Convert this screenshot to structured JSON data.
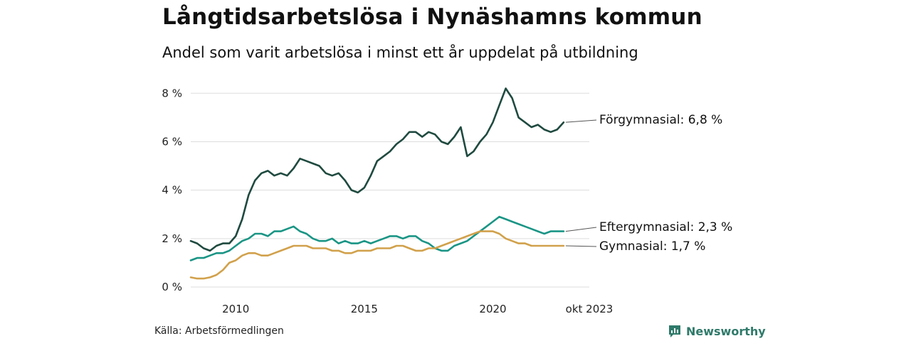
{
  "title": "Långtidsarbetslösa i Nynäshamns kommun",
  "subtitle": "Andel som varit arbetslösa i minst ett år uppdelat på utbildning",
  "source": "Källa: Arbetsförmedlingen",
  "brand": {
    "name": "Newsworthy",
    "icon": "newsworthy-logo-icon",
    "color": "#2f7a6a"
  },
  "chart_data": {
    "type": "line",
    "title": "Långtidsarbetslösa i Nynäshamns kommun",
    "subtitle": "Andel som varit arbetslösa i minst ett år uppdelat på utbildning",
    "xlabel": "",
    "ylabel": "",
    "xlim": [
      2008.25,
      2023.75
    ],
    "ylim": [
      0,
      8.8
    ],
    "y_ticks": [
      0,
      2,
      4,
      6,
      8
    ],
    "y_tick_labels": [
      "0 %",
      "2 %",
      "4 %",
      "6 %",
      "8 %"
    ],
    "x_ticks": [
      2010,
      2015,
      2020,
      2023.75
    ],
    "x_tick_labels": [
      "2010",
      "2015",
      "2020",
      "okt 2023"
    ],
    "grid": true,
    "series": [
      {
        "name": "Förgymnasial",
        "end_label": "Förgymnasial: 6,8 %",
        "color": "#1f4a3f",
        "points": [
          [
            2008.25,
            1.9
          ],
          [
            2008.5,
            1.8
          ],
          [
            2008.75,
            1.6
          ],
          [
            2009.0,
            1.5
          ],
          [
            2009.25,
            1.7
          ],
          [
            2009.5,
            1.8
          ],
          [
            2009.75,
            1.8
          ],
          [
            2010.0,
            2.1
          ],
          [
            2010.25,
            2.8
          ],
          [
            2010.5,
            3.8
          ],
          [
            2010.75,
            4.4
          ],
          [
            2011.0,
            4.7
          ],
          [
            2011.25,
            4.8
          ],
          [
            2011.5,
            4.6
          ],
          [
            2011.75,
            4.7
          ],
          [
            2012.0,
            4.6
          ],
          [
            2012.25,
            4.9
          ],
          [
            2012.5,
            5.3
          ],
          [
            2012.75,
            5.2
          ],
          [
            2013.0,
            5.1
          ],
          [
            2013.25,
            5.0
          ],
          [
            2013.5,
            4.7
          ],
          [
            2013.75,
            4.6
          ],
          [
            2014.0,
            4.7
          ],
          [
            2014.25,
            4.4
          ],
          [
            2014.5,
            4.0
          ],
          [
            2014.75,
            3.9
          ],
          [
            2015.0,
            4.1
          ],
          [
            2015.25,
            4.6
          ],
          [
            2015.5,
            5.2
          ],
          [
            2015.75,
            5.4
          ],
          [
            2016.0,
            5.6
          ],
          [
            2016.25,
            5.9
          ],
          [
            2016.5,
            6.1
          ],
          [
            2016.75,
            6.4
          ],
          [
            2017.0,
            6.4
          ],
          [
            2017.25,
            6.2
          ],
          [
            2017.5,
            6.4
          ],
          [
            2017.75,
            6.3
          ],
          [
            2018.0,
            6.0
          ],
          [
            2018.25,
            5.9
          ],
          [
            2018.5,
            6.2
          ],
          [
            2018.75,
            6.6
          ],
          [
            2019.0,
            5.4
          ],
          [
            2019.25,
            5.6
          ],
          [
            2019.5,
            6.0
          ],
          [
            2019.75,
            6.3
          ],
          [
            2020.0,
            6.8
          ],
          [
            2020.25,
            7.5
          ],
          [
            2020.5,
            8.2
          ],
          [
            2020.75,
            7.8
          ],
          [
            2021.0,
            7.0
          ],
          [
            2021.25,
            6.8
          ],
          [
            2021.5,
            6.6
          ],
          [
            2021.75,
            6.7
          ],
          [
            2022.0,
            6.5
          ],
          [
            2022.25,
            6.4
          ],
          [
            2022.5,
            6.5
          ],
          [
            2022.75,
            6.8
          ]
        ]
      },
      {
        "name": "Eftergymnasial",
        "end_label": "Eftergymnasial: 2,3 %",
        "color": "#1a9585",
        "points": [
          [
            2008.25,
            1.1
          ],
          [
            2008.5,
            1.2
          ],
          [
            2008.75,
            1.2
          ],
          [
            2009.0,
            1.3
          ],
          [
            2009.25,
            1.4
          ],
          [
            2009.5,
            1.4
          ],
          [
            2009.75,
            1.5
          ],
          [
            2010.0,
            1.7
          ],
          [
            2010.25,
            1.9
          ],
          [
            2010.5,
            2.0
          ],
          [
            2010.75,
            2.2
          ],
          [
            2011.0,
            2.2
          ],
          [
            2011.25,
            2.1
          ],
          [
            2011.5,
            2.3
          ],
          [
            2011.75,
            2.3
          ],
          [
            2012.0,
            2.4
          ],
          [
            2012.25,
            2.5
          ],
          [
            2012.5,
            2.3
          ],
          [
            2012.75,
            2.2
          ],
          [
            2013.0,
            2.0
          ],
          [
            2013.25,
            1.9
          ],
          [
            2013.5,
            1.9
          ],
          [
            2013.75,
            2.0
          ],
          [
            2014.0,
            1.8
          ],
          [
            2014.25,
            1.9
          ],
          [
            2014.5,
            1.8
          ],
          [
            2014.75,
            1.8
          ],
          [
            2015.0,
            1.9
          ],
          [
            2015.25,
            1.8
          ],
          [
            2015.5,
            1.9
          ],
          [
            2015.75,
            2.0
          ],
          [
            2016.0,
            2.1
          ],
          [
            2016.25,
            2.1
          ],
          [
            2016.5,
            2.0
          ],
          [
            2016.75,
            2.1
          ],
          [
            2017.0,
            2.1
          ],
          [
            2017.25,
            1.9
          ],
          [
            2017.5,
            1.8
          ],
          [
            2017.75,
            1.6
          ],
          [
            2018.0,
            1.5
          ],
          [
            2018.25,
            1.5
          ],
          [
            2018.5,
            1.7
          ],
          [
            2018.75,
            1.8
          ],
          [
            2019.0,
            1.9
          ],
          [
            2019.25,
            2.1
          ],
          [
            2019.5,
            2.3
          ],
          [
            2019.75,
            2.5
          ],
          [
            2020.0,
            2.7
          ],
          [
            2020.25,
            2.9
          ],
          [
            2020.5,
            2.8
          ],
          [
            2020.75,
            2.7
          ],
          [
            2021.0,
            2.6
          ],
          [
            2021.25,
            2.5
          ],
          [
            2021.5,
            2.4
          ],
          [
            2021.75,
            2.3
          ],
          [
            2022.0,
            2.2
          ],
          [
            2022.25,
            2.3
          ],
          [
            2022.5,
            2.3
          ],
          [
            2022.75,
            2.3
          ]
        ]
      },
      {
        "name": "Gymnasial",
        "end_label": "Gymnasial: 1,7 %",
        "color": "#d1a14b",
        "points": [
          [
            2008.25,
            0.4
          ],
          [
            2008.5,
            0.35
          ],
          [
            2008.75,
            0.35
          ],
          [
            2009.0,
            0.4
          ],
          [
            2009.25,
            0.5
          ],
          [
            2009.5,
            0.7
          ],
          [
            2009.75,
            1.0
          ],
          [
            2010.0,
            1.1
          ],
          [
            2010.25,
            1.3
          ],
          [
            2010.5,
            1.4
          ],
          [
            2010.75,
            1.4
          ],
          [
            2011.0,
            1.3
          ],
          [
            2011.25,
            1.3
          ],
          [
            2011.5,
            1.4
          ],
          [
            2011.75,
            1.5
          ],
          [
            2012.0,
            1.6
          ],
          [
            2012.25,
            1.7
          ],
          [
            2012.5,
            1.7
          ],
          [
            2012.75,
            1.7
          ],
          [
            2013.0,
            1.6
          ],
          [
            2013.25,
            1.6
          ],
          [
            2013.5,
            1.6
          ],
          [
            2013.75,
            1.5
          ],
          [
            2014.0,
            1.5
          ],
          [
            2014.25,
            1.4
          ],
          [
            2014.5,
            1.4
          ],
          [
            2014.75,
            1.5
          ],
          [
            2015.0,
            1.5
          ],
          [
            2015.25,
            1.5
          ],
          [
            2015.5,
            1.6
          ],
          [
            2015.75,
            1.6
          ],
          [
            2016.0,
            1.6
          ],
          [
            2016.25,
            1.7
          ],
          [
            2016.5,
            1.7
          ],
          [
            2016.75,
            1.6
          ],
          [
            2017.0,
            1.5
          ],
          [
            2017.25,
            1.5
          ],
          [
            2017.5,
            1.6
          ],
          [
            2017.75,
            1.6
          ],
          [
            2018.0,
            1.7
          ],
          [
            2018.25,
            1.8
          ],
          [
            2018.5,
            1.9
          ],
          [
            2018.75,
            2.0
          ],
          [
            2019.0,
            2.1
          ],
          [
            2019.25,
            2.2
          ],
          [
            2019.5,
            2.3
          ],
          [
            2019.75,
            2.3
          ],
          [
            2020.0,
            2.3
          ],
          [
            2020.25,
            2.2
          ],
          [
            2020.5,
            2.0
          ],
          [
            2020.75,
            1.9
          ],
          [
            2021.0,
            1.8
          ],
          [
            2021.25,
            1.8
          ],
          [
            2021.5,
            1.7
          ],
          [
            2021.75,
            1.7
          ],
          [
            2022.0,
            1.7
          ],
          [
            2022.25,
            1.7
          ],
          [
            2022.5,
            1.7
          ],
          [
            2022.75,
            1.7
          ]
        ]
      }
    ]
  }
}
